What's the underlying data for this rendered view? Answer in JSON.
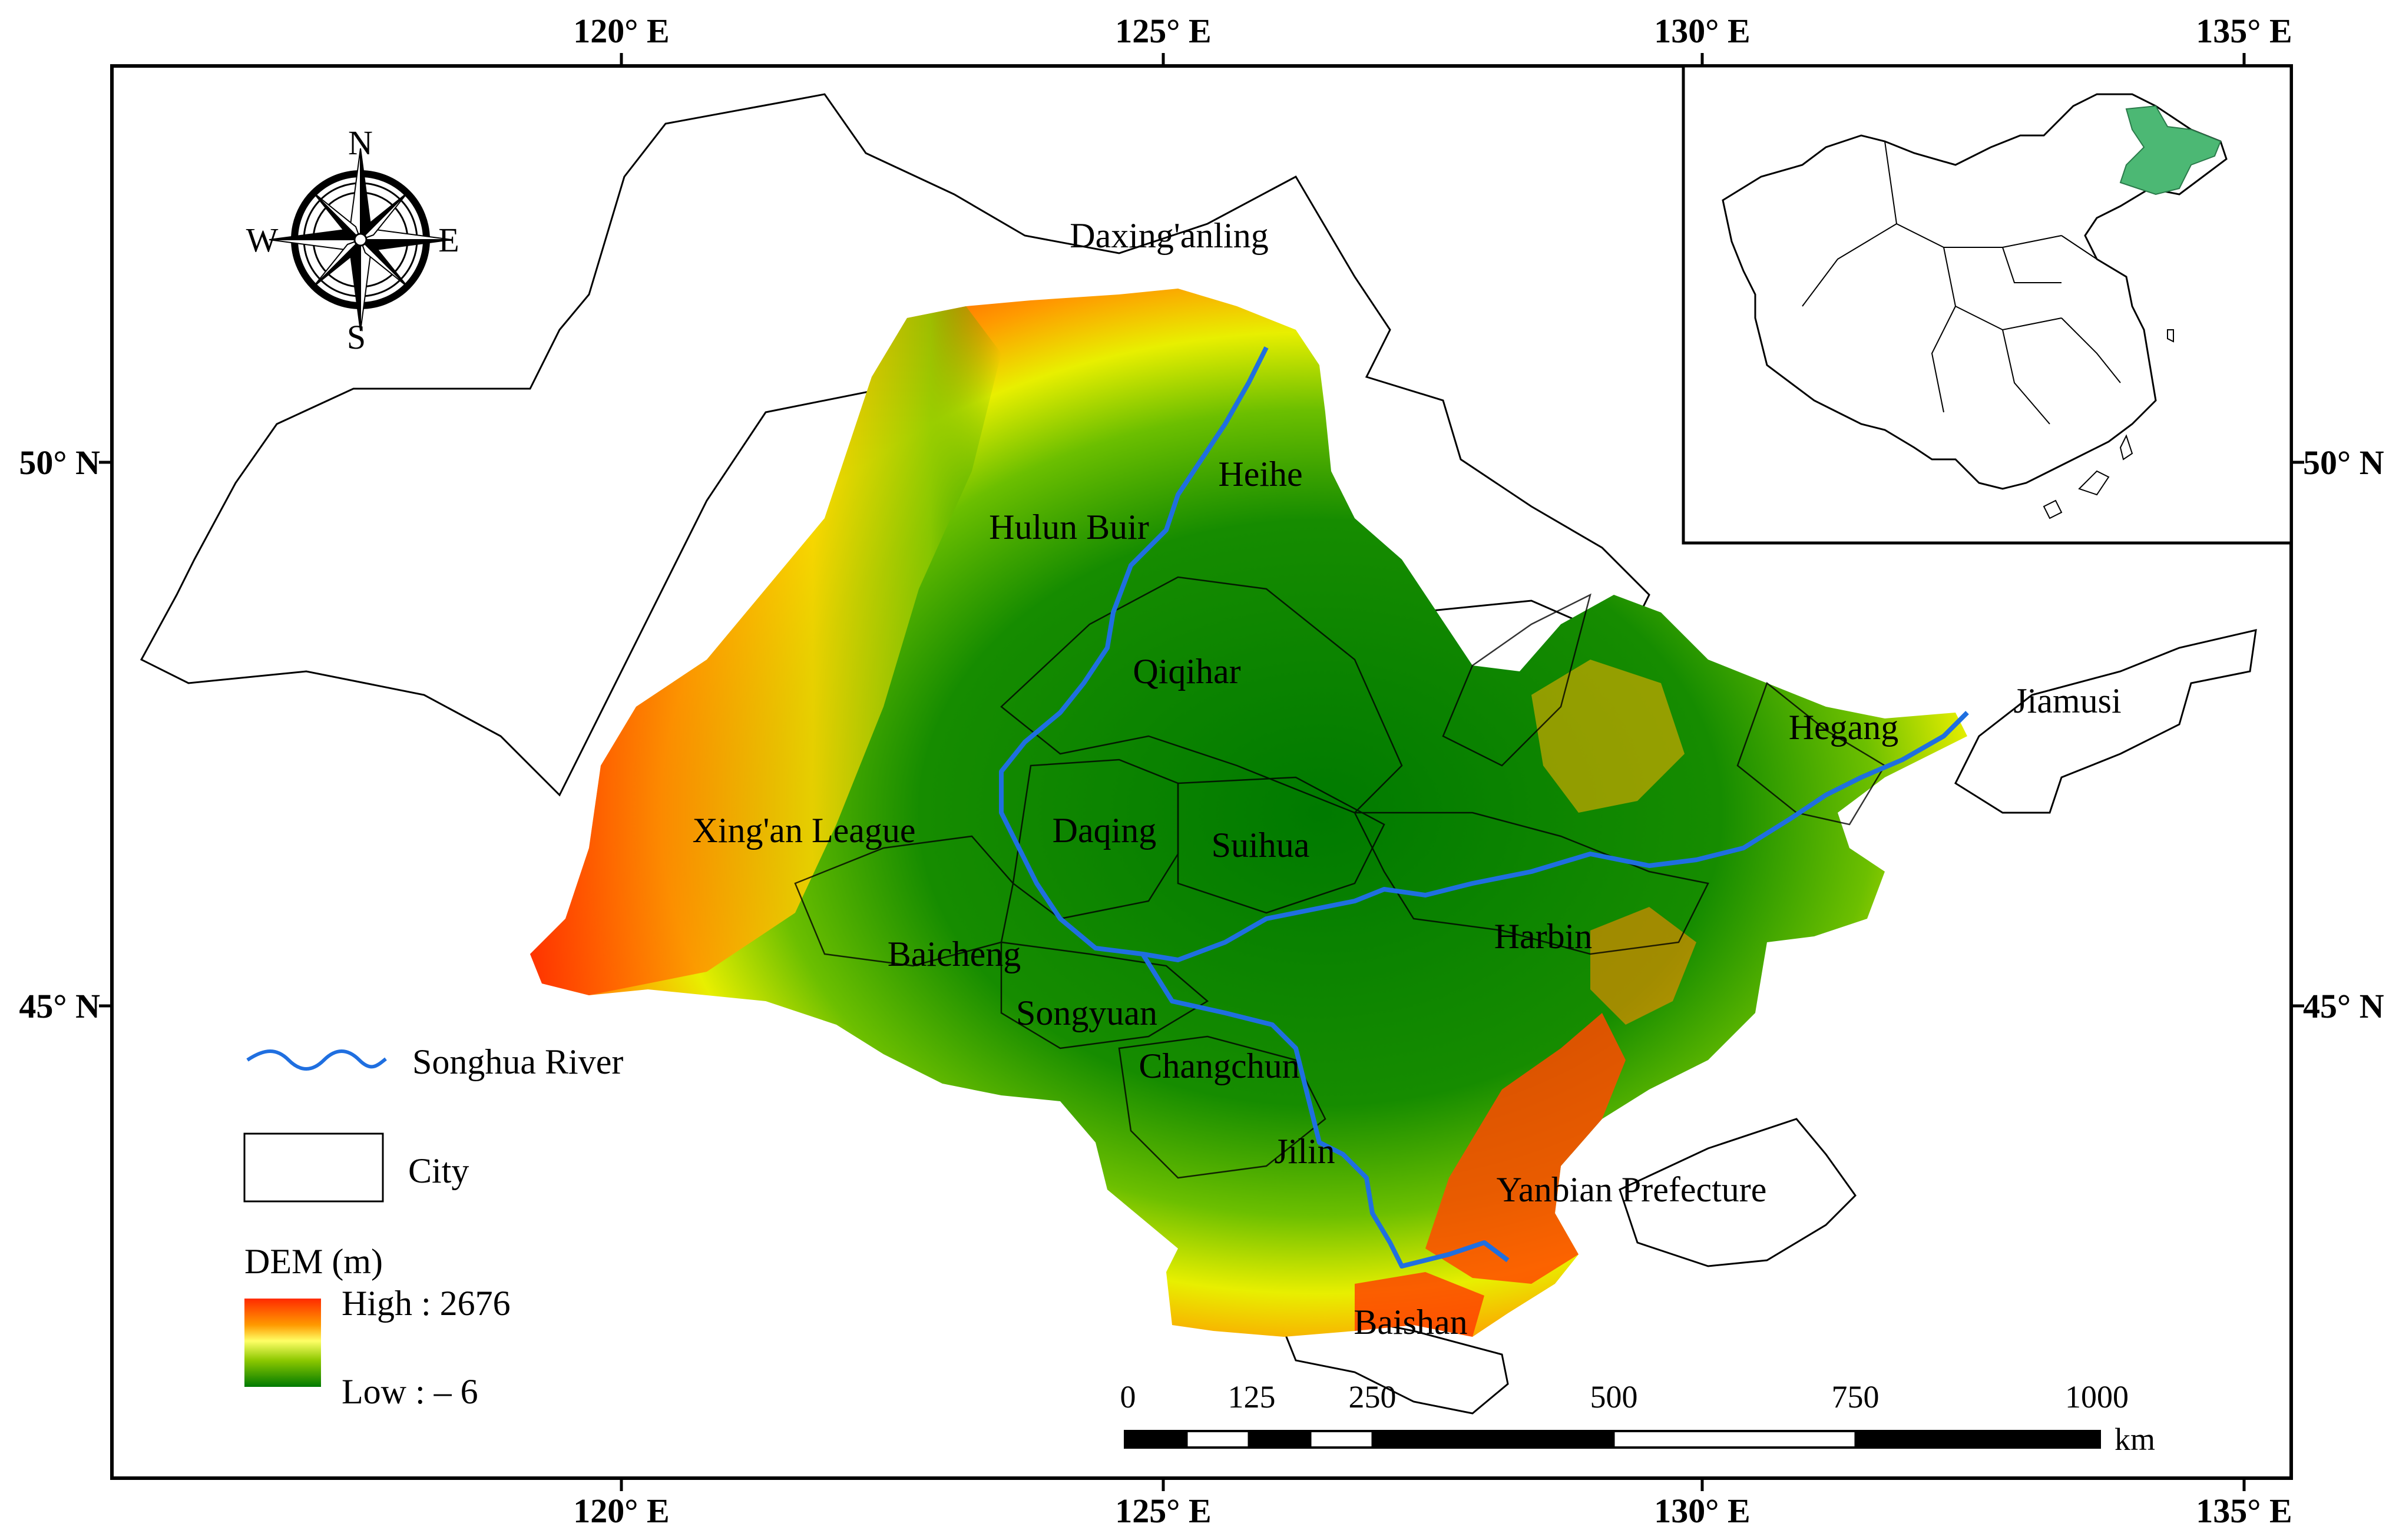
{
  "map": {
    "longitude_labels": [
      "120° E",
      "125° E",
      "130° E",
      "135° E"
    ],
    "latitude_labels": [
      "50° N",
      "45° N"
    ],
    "compass": {
      "north": "N",
      "south": "S",
      "east": "E",
      "west": "W"
    },
    "cities": [
      "Daxing'anling",
      "Heihe",
      "Hulun Buir",
      "Qiqihar",
      "Hegang",
      "Jiamusi",
      "Xing'an League",
      "Daqing",
      "Suihua",
      "Baicheng",
      "Harbin",
      "Songyuan",
      "Changchun",
      "Jilin",
      "Yanbian Prefecture",
      "Baishan"
    ]
  },
  "legend": {
    "river_label": "Songhua River",
    "city_label": "City",
    "dem_title": "DEM (m)",
    "dem_high": "High : 2676",
    "dem_low": "Low : – 6"
  },
  "scale_bar": {
    "ticks": [
      "0",
      "125",
      "250",
      "500",
      "750",
      "1000"
    ],
    "unit": "km"
  },
  "colors": {
    "dem_high": "#ff2a00",
    "dem_mid_high": "#ff8c00",
    "dem_mid": "#ffff00",
    "dem_mid_low": "#7fc400",
    "dem_low": "#007a00",
    "river": "#1f6fe0",
    "inset_highlight": "#4cb874"
  }
}
